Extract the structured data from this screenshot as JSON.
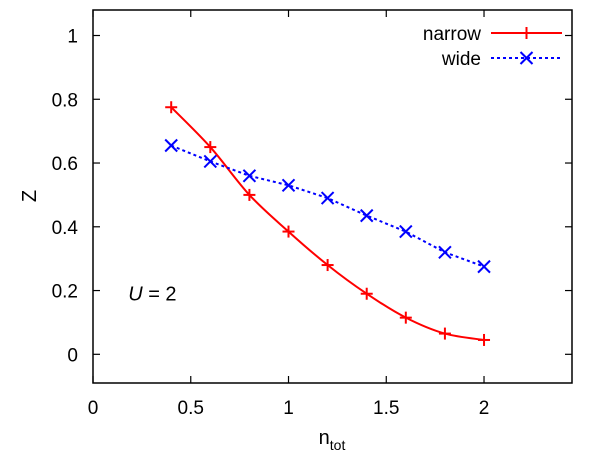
{
  "chart_data": {
    "type": "line",
    "xlabel": "n",
    "xlabel_sub": "tot",
    "ylabel": "Z",
    "xlim": [
      0,
      2.45
    ],
    "ylim": [
      -0.09,
      1.08
    ],
    "x_ticks": [
      0,
      0.5,
      1,
      1.5,
      2
    ],
    "x_tick_labels": [
      "0",
      "0.5",
      "1",
      "1.5",
      "2"
    ],
    "y_ticks": [
      0,
      0.2,
      0.4,
      0.6,
      0.8,
      1
    ],
    "y_tick_labels": [
      "0",
      "0.2",
      "0.4",
      "0.6",
      "0.8",
      "1"
    ],
    "grid": false,
    "legend_position": "top-right",
    "annotation": {
      "variable": "U",
      "text": " = 2",
      "x": 0.18,
      "y": 0.19
    },
    "series": [
      {
        "name": "narrow",
        "color": "#ff0000",
        "line_style": "solid",
        "marker": "plus",
        "x": [
          0.4,
          0.6,
          0.8,
          1.0,
          1.2,
          1.4,
          1.6,
          1.8,
          2.0
        ],
        "y": [
          0.775,
          0.65,
          0.5,
          0.385,
          0.28,
          0.19,
          0.115,
          0.065,
          0.045
        ]
      },
      {
        "name": "wide",
        "color": "#0000ff",
        "line_style": "dotted",
        "marker": "cross",
        "x": [
          0.4,
          0.6,
          0.8,
          1.0,
          1.2,
          1.4,
          1.6,
          1.8,
          2.0
        ],
        "y": [
          0.655,
          0.605,
          0.56,
          0.53,
          0.49,
          0.435,
          0.385,
          0.32,
          0.275
        ]
      }
    ]
  }
}
